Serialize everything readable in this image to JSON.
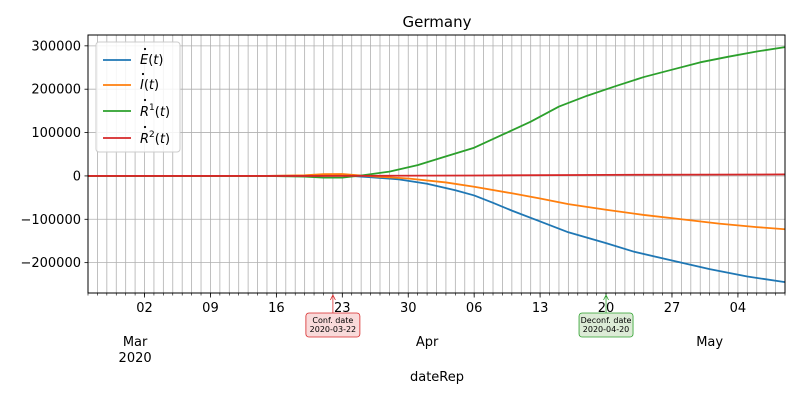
{
  "chart_data": {
    "type": "line",
    "title": "Germany",
    "xlabel": "dateRep",
    "ylabel": "",
    "x_range": [
      "2020-02-25",
      "2020-05-09"
    ],
    "ylim": [
      -270000,
      325000
    ],
    "grid": true,
    "legend_position": "top-left",
    "y_ticks": [
      {
        "value": 300000,
        "label": "300000"
      },
      {
        "value": 200000,
        "label": "200000"
      },
      {
        "value": 100000,
        "label": "100000"
      },
      {
        "value": 0,
        "label": "0"
      },
      {
        "value": -100000,
        "label": "−100000"
      },
      {
        "value": -200000,
        "label": "−200000"
      }
    ],
    "x_major_ticks": [
      {
        "date": "2020-03-02",
        "label": "02"
      },
      {
        "date": "2020-03-09",
        "label": "09"
      },
      {
        "date": "2020-03-16",
        "label": "16"
      },
      {
        "date": "2020-03-23",
        "label": "23"
      },
      {
        "date": "2020-03-30",
        "label": "30"
      },
      {
        "date": "2020-04-06",
        "label": "06"
      },
      {
        "date": "2020-04-13",
        "label": "13"
      },
      {
        "date": "2020-04-20",
        "label": "20"
      },
      {
        "date": "2020-04-27",
        "label": "27"
      },
      {
        "date": "2020-05-04",
        "label": "04"
      }
    ],
    "x_month_labels": [
      {
        "date": "2020-03-01",
        "line1": "Mar",
        "line2": "2020"
      },
      {
        "date": "2020-04-01",
        "line1": "Apr",
        "line2": ""
      },
      {
        "date": "2020-05-01",
        "line1": "May",
        "line2": ""
      }
    ],
    "series": [
      {
        "name": "E",
        "color": "#1f77b4",
        "points": [
          [
            "2020-02-25",
            0
          ],
          [
            "2020-03-15",
            0
          ],
          [
            "2020-03-20",
            500
          ],
          [
            "2020-03-22",
            1500
          ],
          [
            "2020-03-24",
            0
          ],
          [
            "2020-03-26",
            -3000
          ],
          [
            "2020-03-29",
            -8000
          ],
          [
            "2020-04-01",
            -18000
          ],
          [
            "2020-04-04",
            -33000
          ],
          [
            "2020-04-06",
            -45000
          ],
          [
            "2020-04-08",
            -62000
          ],
          [
            "2020-04-10",
            -80000
          ],
          [
            "2020-04-13",
            -105000
          ],
          [
            "2020-04-16",
            -130000
          ],
          [
            "2020-04-20",
            -155000
          ],
          [
            "2020-04-23",
            -175000
          ],
          [
            "2020-04-27",
            -195000
          ],
          [
            "2020-05-01",
            -215000
          ],
          [
            "2020-05-05",
            -232000
          ],
          [
            "2020-05-09",
            -245000
          ]
        ]
      },
      {
        "name": "I",
        "color": "#ff7f0e",
        "points": [
          [
            "2020-02-25",
            0
          ],
          [
            "2020-03-15",
            0
          ],
          [
            "2020-03-19",
            1500
          ],
          [
            "2020-03-21",
            4000
          ],
          [
            "2020-03-23",
            4500
          ],
          [
            "2020-03-25",
            1000
          ],
          [
            "2020-03-27",
            -2000
          ],
          [
            "2020-03-30",
            -6000
          ],
          [
            "2020-04-03",
            -15000
          ],
          [
            "2020-04-06",
            -25000
          ],
          [
            "2020-04-10",
            -40000
          ],
          [
            "2020-04-13",
            -52000
          ],
          [
            "2020-04-16",
            -65000
          ],
          [
            "2020-04-20",
            -78000
          ],
          [
            "2020-04-24",
            -90000
          ],
          [
            "2020-04-28",
            -100000
          ],
          [
            "2020-05-02",
            -110000
          ],
          [
            "2020-05-06",
            -118000
          ],
          [
            "2020-05-09",
            -123000
          ]
        ]
      },
      {
        "name": "R1",
        "color": "#2ca02c",
        "points": [
          [
            "2020-02-25",
            0
          ],
          [
            "2020-03-15",
            0
          ],
          [
            "2020-03-19",
            -1500
          ],
          [
            "2020-03-21",
            -4000
          ],
          [
            "2020-03-23",
            -4000
          ],
          [
            "2020-03-25",
            1000
          ],
          [
            "2020-03-28",
            10000
          ],
          [
            "2020-03-31",
            25000
          ],
          [
            "2020-04-03",
            45000
          ],
          [
            "2020-04-06",
            65000
          ],
          [
            "2020-04-09",
            95000
          ],
          [
            "2020-04-12",
            125000
          ],
          [
            "2020-04-15",
            160000
          ],
          [
            "2020-04-18",
            185000
          ],
          [
            "2020-04-21",
            207000
          ],
          [
            "2020-04-24",
            228000
          ],
          [
            "2020-04-27",
            245000
          ],
          [
            "2020-04-30",
            262000
          ],
          [
            "2020-05-03",
            275000
          ],
          [
            "2020-05-06",
            287000
          ],
          [
            "2020-05-09",
            297000
          ]
        ]
      },
      {
        "name": "R2",
        "color": "#d62728",
        "points": [
          [
            "2020-02-25",
            0
          ],
          [
            "2020-03-20",
            0
          ],
          [
            "2020-04-06",
            1000
          ],
          [
            "2020-04-20",
            2500
          ],
          [
            "2020-05-09",
            3500
          ]
        ]
      }
    ],
    "annotations": [
      {
        "date": "2020-03-22",
        "lines": [
          "Conf. date",
          "2020-03-22"
        ],
        "bg": "#f9dada",
        "border": "#d62728"
      },
      {
        "date": "2020-04-20",
        "lines": [
          "Deconf. date",
          "2020-04-20"
        ],
        "bg": "#dcebd6",
        "border": "#2ca02c"
      }
    ]
  }
}
